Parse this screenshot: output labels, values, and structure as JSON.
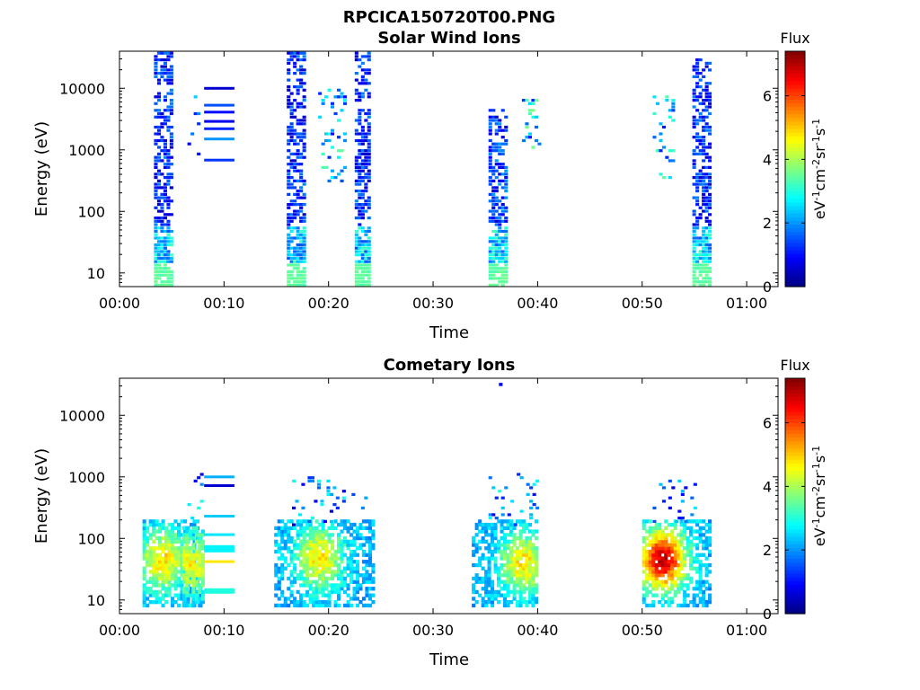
{
  "figure": {
    "title": "RPCICA150720T00.PNG"
  },
  "colorbar": {
    "label": "Flux",
    "ticks": [
      "0",
      "2",
      "4",
      "6"
    ],
    "range": [
      0,
      7.4
    ]
  },
  "chart_data": [
    {
      "type": "heatmap",
      "title": "Solar Wind Ions",
      "xlabel": "Time",
      "ylabel": "Energy (eV)",
      "x_ticks": [
        "00:00",
        "00:10",
        "00:20",
        "00:30",
        "00:40",
        "00:50",
        "01:00"
      ],
      "y_ticks": [
        "10",
        "100",
        "1000",
        "10000"
      ],
      "xlim_min": [
        0,
        63
      ],
      "ylim_eV": [
        6,
        40000
      ],
      "yscale": "log",
      "colorscale": "jet",
      "bursts": [
        {
          "t": [
            3.3,
            4.8
          ],
          "emin": 6,
          "emax": 40000,
          "flux": 1.2,
          "density": 0.55,
          "lowflux": 3.3
        },
        {
          "t": [
            16.0,
            17.6
          ],
          "emin": 6,
          "emax": 40000,
          "flux": 1.2,
          "density": 0.55,
          "lowflux": 3.3
        },
        {
          "t": [
            22.5,
            24.0
          ],
          "emin": 6,
          "emax": 40000,
          "flux": 1.2,
          "density": 0.55,
          "lowflux": 3.3
        },
        {
          "t": [
            35.3,
            36.8
          ],
          "emin": 6,
          "emax": 5000,
          "flux": 1.3,
          "density": 0.55,
          "lowflux": 3.3
        },
        {
          "t": [
            54.8,
            56.3
          ],
          "emin": 6,
          "emax": 30000,
          "flux": 1.2,
          "density": 0.55,
          "lowflux": 3.3
        },
        {
          "t": [
            6.5,
            7.5
          ],
          "emin": 800,
          "emax": 9000,
          "flux": 1.6,
          "density": 0.12,
          "lowflux": 2.6
        },
        {
          "t": [
            19.0,
            21.5
          ],
          "emin": 300,
          "emax": 10000,
          "flux": 2.2,
          "density": 0.18,
          "lowflux": 2.6
        },
        {
          "t": [
            38.5,
            40.0
          ],
          "emin": 1000,
          "emax": 8000,
          "flux": 2.4,
          "density": 0.25,
          "lowflux": 2.6
        },
        {
          "t": [
            51.0,
            53.0
          ],
          "emin": 300,
          "emax": 8000,
          "flux": 2.2,
          "density": 0.15,
          "lowflux": 2.6
        }
      ],
      "lines": [
        {
          "t": [
            8.1,
            11.0
          ],
          "e": 10000,
          "flux": 0.6
        },
        {
          "t": [
            8.1,
            11.0
          ],
          "e": 5300,
          "flux": 1.5
        },
        {
          "t": [
            8.1,
            11.0
          ],
          "e": 4100,
          "flux": 1.0
        },
        {
          "t": [
            8.1,
            11.0
          ],
          "e": 2900,
          "flux": 0.8
        },
        {
          "t": [
            8.1,
            11.0
          ],
          "e": 2200,
          "flux": 1.2
        },
        {
          "t": [
            8.1,
            11.0
          ],
          "e": 1500,
          "flux": 2.0
        },
        {
          "t": [
            8.1,
            11.0
          ],
          "e": 680,
          "flux": 1.3
        }
      ]
    },
    {
      "type": "heatmap",
      "title": "Cometary Ions",
      "xlabel": "Time",
      "ylabel": "Energy (eV)",
      "x_ticks": [
        "00:00",
        "00:10",
        "00:20",
        "00:30",
        "00:40",
        "00:50",
        "01:00"
      ],
      "y_ticks": [
        "10",
        "100",
        "1000",
        "10000"
      ],
      "xlim_min": [
        0,
        63
      ],
      "ylim_eV": [
        6,
        40000
      ],
      "yscale": "log",
      "colorscale": "jet",
      "blobs": [
        {
          "t": [
            2.2,
            7.8
          ],
          "emin": 8,
          "emax": 200,
          "peak": 4.8,
          "center": [
            4.0,
            45
          ]
        },
        {
          "t": [
            6.0,
            7.8
          ],
          "emin": 8,
          "emax": 150,
          "peak": 4.6,
          "center": [
            6.8,
            40
          ]
        },
        {
          "t": [
            14.8,
            24.3
          ],
          "emin": 8,
          "emax": 200,
          "peak": 4.8,
          "center": [
            19.0,
            50
          ]
        },
        {
          "t": [
            33.7,
            39.8
          ],
          "emin": 8,
          "emax": 200,
          "peak": 4.8,
          "center": [
            38.5,
            40
          ]
        },
        {
          "t": [
            50.0,
            56.5
          ],
          "emin": 8,
          "emax": 200,
          "peak": 6.8,
          "center": [
            51.8,
            45
          ]
        }
      ],
      "sparse": [
        {
          "t": [
            6.5,
            7.7
          ],
          "emin": 200,
          "emax": 1200
        },
        {
          "t": [
            16.5,
            23.5
          ],
          "emin": 150,
          "emax": 1200
        },
        {
          "t": [
            35.0,
            40.0
          ],
          "emin": 150,
          "emax": 1200
        },
        {
          "t": [
            51.0,
            56.0
          ],
          "emin": 150,
          "emax": 1100
        }
      ],
      "lines": [
        {
          "t": [
            8.1,
            11.0
          ],
          "e": 1000,
          "flux": 2.2
        },
        {
          "t": [
            8.1,
            11.0
          ],
          "e": 720,
          "flux": 0.6
        },
        {
          "t": [
            8.1,
            11.0
          ],
          "e": 230,
          "flux": 2.4
        },
        {
          "t": [
            8.1,
            11.0
          ],
          "e": 115,
          "flux": 2.6
        },
        {
          "t": [
            8.1,
            11.0
          ],
          "e": 68,
          "flux": 2.7,
          "h": 8
        },
        {
          "t": [
            8.1,
            11.0
          ],
          "e": 42,
          "flux": 4.8
        },
        {
          "t": [
            8.1,
            11.0
          ],
          "e": 14,
          "flux": 3.0,
          "h": 6
        }
      ],
      "outliers": [
        {
          "t": 36.3,
          "e": 32000,
          "flux": 1.0
        }
      ]
    }
  ]
}
